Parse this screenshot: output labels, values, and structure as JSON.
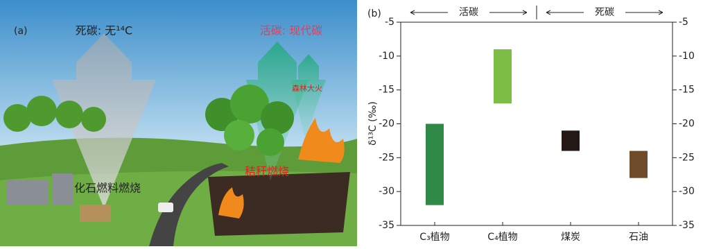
{
  "illustration": {
    "panel_label": "(a)",
    "dead_carbon": "死碳: 无¹⁴C",
    "live_carbon": "活碳: 现代碳",
    "forest_fire": "森林大火",
    "fossil_fuel": "化石燃料燃烧",
    "straw_burning": "秸秆燃烧"
  },
  "chart_data": {
    "type": "floating_bar",
    "panel_label": "(b)",
    "ylabel": "δ¹³C (‰)",
    "groups": [
      {
        "label": "活碳",
        "categories": [
          "C₃植物",
          "C₄植物"
        ],
        "low": [
          -32,
          -17
        ],
        "high": [
          -20,
          -9
        ],
        "colors": [
          "#2f8a48",
          "#7dbd45"
        ]
      },
      {
        "label": "死碳",
        "categories": [
          "煤炭",
          "石油"
        ],
        "low": [
          -24,
          -28
        ],
        "high": [
          -21,
          -24
        ],
        "colors": [
          "#231815",
          "#6d4b2b"
        ]
      }
    ],
    "ylim": [
      -35,
      -5
    ],
    "yticks": [
      -35,
      -30,
      -25,
      -20,
      -15,
      -10,
      -5
    ],
    "y2lim": [
      -35,
      -5
    ],
    "y2ticks": [
      -35,
      -30,
      -25,
      -20,
      -15,
      -10,
      -5
    ]
  }
}
